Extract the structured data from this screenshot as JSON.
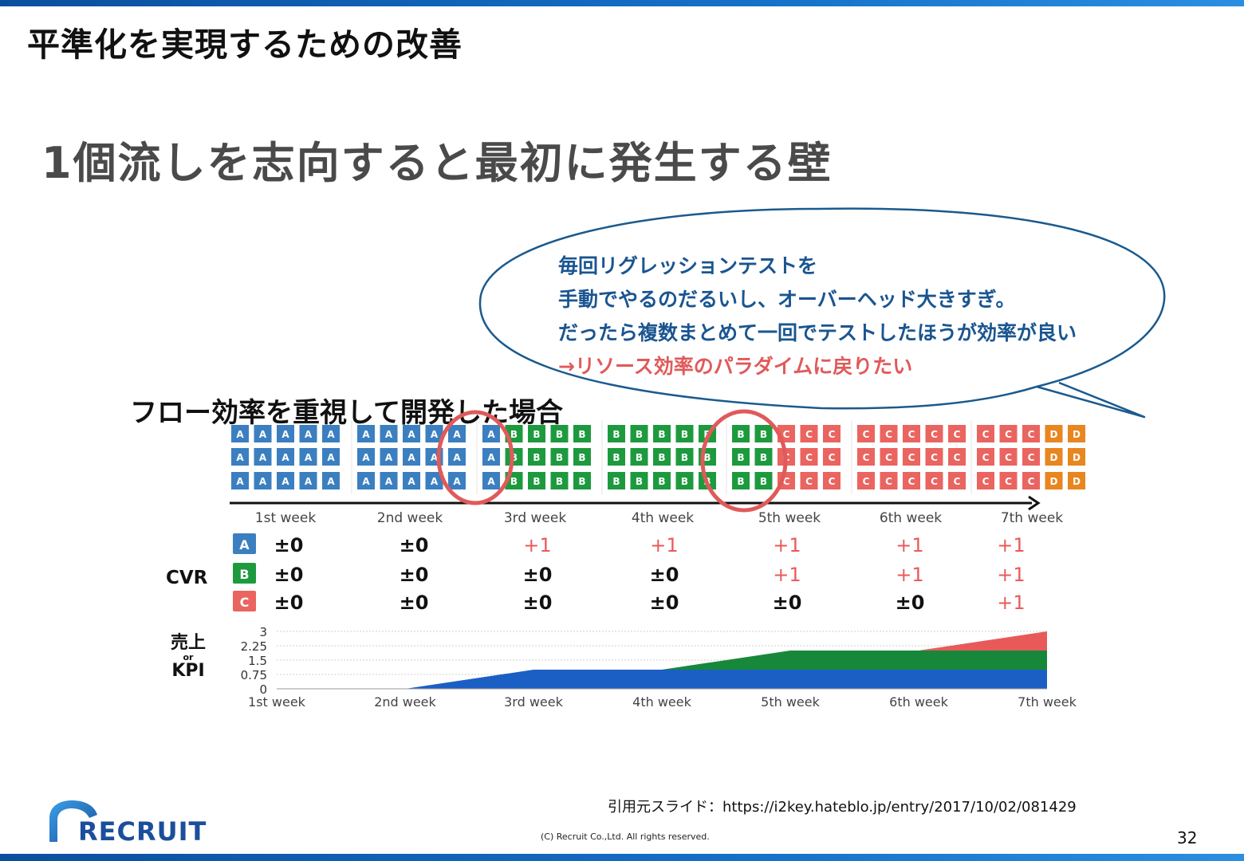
{
  "slide": {
    "title": "平準化を実現するための改善",
    "subtitle": "1個流しを志向すると最初に発生する壁",
    "bubble_lines": [
      "毎回リグレッションテストを",
      "手動でやるのだるいし、オーバーヘッド大きすぎ。",
      "だったら複数まとめて一回でテストしたほうが効率が良い"
    ],
    "bubble_line_red": "→リソース効率のパラダイムに戻りたい",
    "flow_title": "フロー効率を重視して開発した場合",
    "cvr_label": "CVR",
    "sales_label_top": "売上",
    "sales_label_or": "or",
    "sales_label_bottom": "KPI",
    "source": "引用元スライド：https://i2key.hateblo.jp/entry/2017/10/02/081429",
    "copyright": "(C) Recruit Co.,Ltd. All rights reserved.",
    "page_number": "32",
    "logo_text": "RECRUIT"
  },
  "colors": {
    "A": "#3b7fc0",
    "B": "#1e9a3e",
    "C": "#ea6460",
    "D": "#e8861f",
    "area_A": "#1b5fc4",
    "area_B": "#17883a",
    "area_C": "#e85a5a",
    "plus": "#ea5a5a",
    "circle": "#e05a5a"
  },
  "chart_data": [
    {
      "type": "table",
      "name_visible": false,
      "weeks": [
        "1st week",
        "2nd week",
        "3rd week",
        "4th week",
        "5th week",
        "6th week",
        "7th week"
      ],
      "rows": [
        {
          "label": "A",
          "values": [
            "±0",
            "±0",
            "+1",
            "+1",
            "+1",
            "+1",
            "+1"
          ]
        },
        {
          "label": "B",
          "values": [
            "±0",
            "±0",
            "±0",
            "±0",
            "+1",
            "+1",
            "+1"
          ]
        },
        {
          "label": "C",
          "values": [
            "±0",
            "±0",
            "±0",
            "±0",
            "±0",
            "±0",
            "+1"
          ]
        }
      ],
      "task_grid": [
        [
          "AAAAA",
          "AAAAA",
          "AAAAA"
        ],
        [
          "AAAAA",
          "AAAAA",
          "AAAAA"
        ],
        [
          "ABBBB",
          "ABBBB",
          "ABBBB"
        ],
        [
          "BBBBB",
          "BBBBB",
          "BBBBB"
        ],
        [
          "BBCCC",
          "BBCCC",
          "BBCCC"
        ],
        [
          "CCCCC",
          "CCCCC",
          "CCCCC"
        ],
        [
          "CCCDD",
          "CCCDD",
          "CCCDD"
        ]
      ]
    },
    {
      "type": "area",
      "x": [
        "1st week",
        "2nd week",
        "3rd week",
        "4th week",
        "5th week",
        "6th week",
        "7th week"
      ],
      "yticks": [
        "3",
        "2.25",
        "1.5",
        "0.75",
        "0"
      ],
      "ylim": [
        0,
        3
      ],
      "grid": true,
      "series": [
        {
          "name": "A",
          "values": [
            0,
            0,
            1,
            1,
            1,
            1,
            1
          ]
        },
        {
          "name": "B",
          "values": [
            0,
            0,
            0,
            0,
            1,
            1,
            1
          ]
        },
        {
          "name": "C",
          "values": [
            0,
            0,
            0,
            0,
            0,
            0,
            1
          ]
        }
      ]
    }
  ]
}
